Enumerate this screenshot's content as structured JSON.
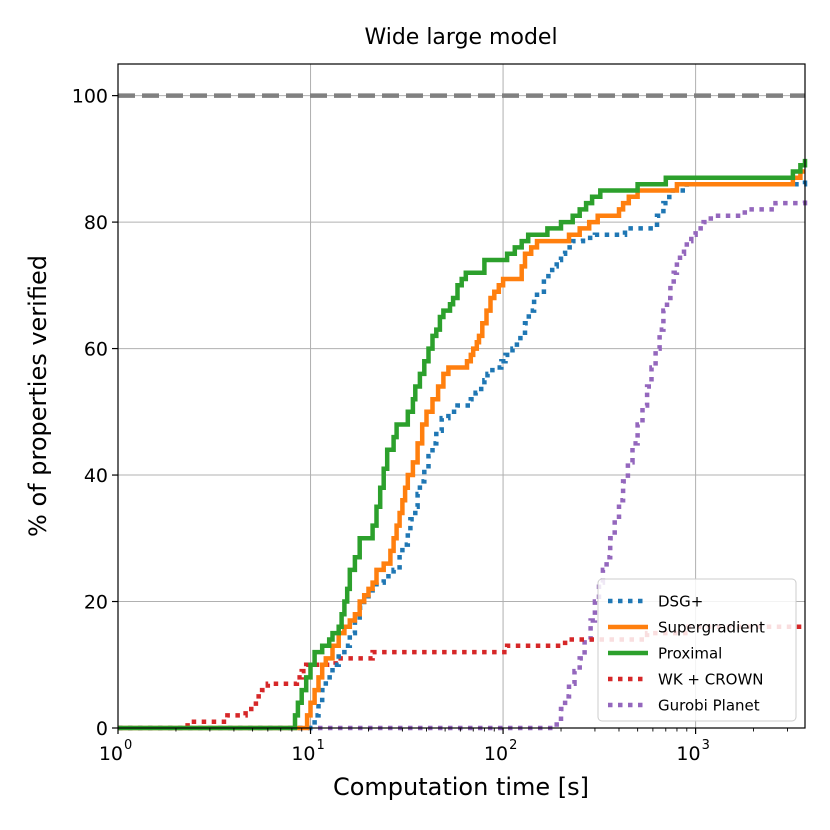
{
  "chart_data": {
    "type": "line",
    "title": "Wide large model",
    "xlabel": "Computation time [s]",
    "ylabel": "% of properties verified",
    "xscale": "log",
    "xlim": [
      1,
      3700
    ],
    "ylim": [
      0,
      105
    ],
    "grid": true,
    "legend_position": "lower-right",
    "x_ticks": [
      {
        "value": 1,
        "base": "10",
        "exp": "0"
      },
      {
        "value": 10,
        "base": "10",
        "exp": "1"
      },
      {
        "value": 100,
        "base": "10",
        "exp": "2"
      },
      {
        "value": 1000,
        "base": "10",
        "exp": "3"
      }
    ],
    "y_ticks": [
      {
        "value": 0,
        "label": "0"
      },
      {
        "value": 20,
        "label": "20"
      },
      {
        "value": 40,
        "label": "40"
      },
      {
        "value": 60,
        "label": "60"
      },
      {
        "value": 80,
        "label": "80"
      },
      {
        "value": 100,
        "label": "100"
      }
    ],
    "reference_line": {
      "y": 100,
      "color": "#808080",
      "style": "dashed"
    },
    "series": [
      {
        "name": "DSG+",
        "color": "#1f77b4",
        "style": "dotted",
        "points": [
          [
            1,
            0
          ],
          [
            10.2,
            0
          ],
          [
            10.5,
            2
          ],
          [
            11,
            4
          ],
          [
            11.5,
            6
          ],
          [
            12,
            8
          ],
          [
            13,
            10
          ],
          [
            14,
            12
          ],
          [
            15,
            13
          ],
          [
            16,
            15
          ],
          [
            17,
            17
          ],
          [
            18,
            19
          ],
          [
            19,
            20
          ],
          [
            20,
            21
          ],
          [
            21,
            22
          ],
          [
            22,
            23
          ],
          [
            24,
            24
          ],
          [
            27,
            25
          ],
          [
            29,
            27
          ],
          [
            30,
            29
          ],
          [
            32,
            31
          ],
          [
            33,
            33
          ],
          [
            35,
            35
          ],
          [
            36,
            37
          ],
          [
            37,
            39
          ],
          [
            39,
            41
          ],
          [
            41,
            43
          ],
          [
            43,
            45
          ],
          [
            45,
            47
          ],
          [
            48,
            49
          ],
          [
            52,
            50
          ],
          [
            58,
            51
          ],
          [
            68,
            52
          ],
          [
            72,
            53
          ],
          [
            77,
            54
          ],
          [
            80,
            55
          ],
          [
            83,
            56
          ],
          [
            88,
            57
          ],
          [
            98,
            58
          ],
          [
            103,
            59
          ],
          [
            112,
            60
          ],
          [
            118,
            61
          ],
          [
            123,
            62
          ],
          [
            130,
            64
          ],
          [
            136,
            66
          ],
          [
            145,
            68
          ],
          [
            150,
            69
          ],
          [
            163,
            71
          ],
          [
            172,
            72
          ],
          [
            180,
            73
          ],
          [
            190,
            74
          ],
          [
            200,
            75
          ],
          [
            210,
            76
          ],
          [
            230,
            77
          ],
          [
            260,
            77.5
          ],
          [
            300,
            78
          ],
          [
            400,
            78
          ],
          [
            430,
            79
          ],
          [
            590,
            79
          ],
          [
            630,
            81
          ],
          [
            680,
            83
          ],
          [
            730,
            85
          ],
          [
            900,
            86
          ],
          [
            3700,
            87
          ]
        ]
      },
      {
        "name": "Supergradient",
        "color": "#ff7f0e",
        "style": "solid",
        "points": [
          [
            1,
            0
          ],
          [
            9.3,
            0
          ],
          [
            9.6,
            2
          ],
          [
            10,
            4
          ],
          [
            10.5,
            6
          ],
          [
            11,
            8
          ],
          [
            11.5,
            10
          ],
          [
            12,
            11
          ],
          [
            13,
            13
          ],
          [
            14,
            15
          ],
          [
            15,
            16
          ],
          [
            16,
            17
          ],
          [
            17,
            18
          ],
          [
            18,
            20
          ],
          [
            19,
            21
          ],
          [
            20,
            22
          ],
          [
            21,
            23
          ],
          [
            22,
            25
          ],
          [
            24,
            26
          ],
          [
            26,
            28
          ],
          [
            27,
            30
          ],
          [
            28,
            32
          ],
          [
            29,
            34
          ],
          [
            30,
            36
          ],
          [
            31,
            38
          ],
          [
            32,
            40
          ],
          [
            34,
            42
          ],
          [
            36,
            45
          ],
          [
            38,
            48
          ],
          [
            40,
            50
          ],
          [
            43,
            52
          ],
          [
            46,
            54
          ],
          [
            49,
            56
          ],
          [
            52,
            57
          ],
          [
            62,
            57
          ],
          [
            65,
            58
          ],
          [
            68,
            59
          ],
          [
            70,
            60
          ],
          [
            73,
            61
          ],
          [
            75,
            62
          ],
          [
            78,
            64
          ],
          [
            82,
            66
          ],
          [
            86,
            68
          ],
          [
            90,
            69
          ],
          [
            95,
            70
          ],
          [
            100,
            71
          ],
          [
            120,
            71
          ],
          [
            125,
            73
          ],
          [
            130,
            75
          ],
          [
            140,
            76
          ],
          [
            150,
            77
          ],
          [
            200,
            77
          ],
          [
            220,
            78
          ],
          [
            250,
            79
          ],
          [
            280,
            80
          ],
          [
            310,
            81
          ],
          [
            380,
            81
          ],
          [
            400,
            82
          ],
          [
            420,
            83
          ],
          [
            450,
            84
          ],
          [
            500,
            85
          ],
          [
            700,
            85
          ],
          [
            800,
            86
          ],
          [
            3000,
            86
          ],
          [
            3200,
            87
          ],
          [
            3500,
            88
          ],
          [
            3700,
            88
          ]
        ]
      },
      {
        "name": "Proximal",
        "color": "#2ca02c",
        "style": "solid",
        "points": [
          [
            1,
            0
          ],
          [
            8,
            0
          ],
          [
            8.3,
            2
          ],
          [
            8.6,
            4
          ],
          [
            9,
            6
          ],
          [
            9.5,
            8
          ],
          [
            10,
            10
          ],
          [
            10.5,
            12
          ],
          [
            11.5,
            13
          ],
          [
            12.5,
            14
          ],
          [
            13,
            15
          ],
          [
            14,
            16
          ],
          [
            14.5,
            18
          ],
          [
            15,
            20
          ],
          [
            15.5,
            22
          ],
          [
            16,
            25
          ],
          [
            17,
            27
          ],
          [
            18,
            30
          ],
          [
            20,
            30
          ],
          [
            21,
            32
          ],
          [
            22,
            35
          ],
          [
            23,
            38
          ],
          [
            24,
            41
          ],
          [
            25,
            44
          ],
          [
            27,
            46
          ],
          [
            28,
            48
          ],
          [
            31,
            48
          ],
          [
            32,
            50
          ],
          [
            34,
            52
          ],
          [
            35,
            54
          ],
          [
            37,
            56
          ],
          [
            39,
            58
          ],
          [
            41,
            60
          ],
          [
            43,
            62
          ],
          [
            45,
            63
          ],
          [
            47,
            65
          ],
          [
            49,
            66
          ],
          [
            53,
            67
          ],
          [
            55,
            68
          ],
          [
            58,
            70
          ],
          [
            61,
            71
          ],
          [
            64,
            72
          ],
          [
            77,
            72
          ],
          [
            80,
            74
          ],
          [
            100,
            74
          ],
          [
            105,
            75
          ],
          [
            115,
            76
          ],
          [
            125,
            77
          ],
          [
            135,
            78
          ],
          [
            155,
            78
          ],
          [
            170,
            79
          ],
          [
            200,
            80
          ],
          [
            230,
            81
          ],
          [
            250,
            82
          ],
          [
            270,
            83
          ],
          [
            290,
            84
          ],
          [
            320,
            85
          ],
          [
            450,
            85
          ],
          [
            500,
            86
          ],
          [
            600,
            86
          ],
          [
            700,
            87
          ],
          [
            3000,
            87
          ],
          [
            3200,
            88
          ],
          [
            3500,
            89
          ],
          [
            3700,
            90
          ]
        ]
      },
      {
        "name": "WK + CROWN",
        "color": "#d62728",
        "style": "dotted",
        "points": [
          [
            1,
            0
          ],
          [
            2,
            0
          ],
          [
            2.3,
            1
          ],
          [
            3.4,
            1
          ],
          [
            3.7,
            2
          ],
          [
            4.6,
            3
          ],
          [
            5.2,
            5
          ],
          [
            5.6,
            6
          ],
          [
            6,
            7
          ],
          [
            8,
            7
          ],
          [
            8.5,
            8
          ],
          [
            9,
            9
          ],
          [
            9.5,
            10
          ],
          [
            13,
            10
          ],
          [
            13.5,
            11
          ],
          [
            20,
            11
          ],
          [
            21,
            12
          ],
          [
            100,
            12
          ],
          [
            105,
            13
          ],
          [
            200,
            13
          ],
          [
            210,
            14
          ],
          [
            550,
            14
          ],
          [
            560,
            15
          ],
          [
            900,
            15
          ],
          [
            920,
            16
          ],
          [
            3700,
            16
          ]
        ]
      },
      {
        "name": "Gurobi Planet",
        "color": "#9467bd",
        "style": "dotted",
        "points": [
          [
            1,
            0
          ],
          [
            180,
            0
          ],
          [
            190,
            1
          ],
          [
            200,
            3
          ],
          [
            210,
            5
          ],
          [
            220,
            7
          ],
          [
            235,
            9
          ],
          [
            250,
            11
          ],
          [
            265,
            14
          ],
          [
            285,
            17
          ],
          [
            300,
            20
          ],
          [
            315,
            23
          ],
          [
            330,
            25
          ],
          [
            345,
            27
          ],
          [
            360,
            30
          ],
          [
            380,
            33
          ],
          [
            400,
            36
          ],
          [
            420,
            39
          ],
          [
            445,
            42
          ],
          [
            470,
            45
          ],
          [
            500,
            48
          ],
          [
            530,
            51
          ],
          [
            560,
            54
          ],
          [
            590,
            57
          ],
          [
            620,
            60
          ],
          [
            650,
            63
          ],
          [
            680,
            66
          ],
          [
            710,
            68
          ],
          [
            740,
            70
          ],
          [
            770,
            72
          ],
          [
            800,
            74
          ],
          [
            830,
            75
          ],
          [
            870,
            76
          ],
          [
            900,
            77
          ],
          [
            950,
            78
          ],
          [
            1000,
            79
          ],
          [
            1100,
            80
          ],
          [
            1200,
            81
          ],
          [
            1700,
            81
          ],
          [
            1800,
            82
          ],
          [
            2500,
            82
          ],
          [
            2600,
            83
          ],
          [
            3700,
            84
          ]
        ]
      }
    ]
  }
}
